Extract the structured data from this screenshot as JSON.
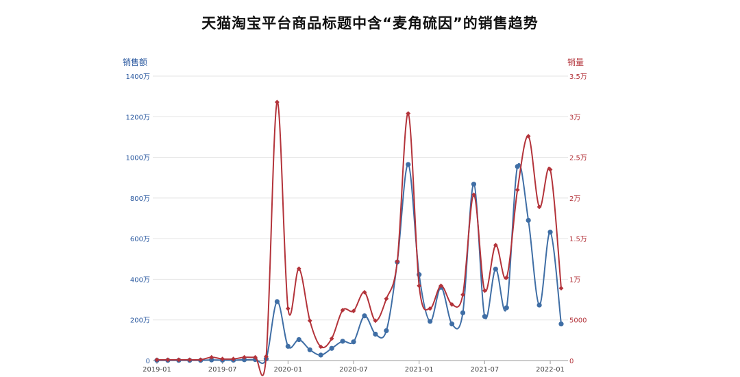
{
  "chart_data": {
    "type": "line",
    "title": "天猫淘宝平台商品标题中含“麦角硫因”的销售趋势",
    "x": [
      "2019-01",
      "2019-02",
      "2019-03",
      "2019-04",
      "2019-05",
      "2019-06",
      "2019-07",
      "2019-08",
      "2019-09",
      "2019-10",
      "2019-11",
      "2019-12",
      "2020-01",
      "2020-02",
      "2020-03",
      "2020-04",
      "2020-05",
      "2020-06",
      "2020-07",
      "2020-08",
      "2020-09",
      "2020-10",
      "2020-11",
      "2020-12",
      "2021-01",
      "2021-02",
      "2021-03",
      "2021-04",
      "2021-05",
      "2021-06",
      "2021-07",
      "2021-08",
      "2021-09",
      "2021-10",
      "2021-11",
      "2021-12",
      "2022-01",
      "2022-02"
    ],
    "x_tick_labels": [
      "2019-01",
      "2019-07",
      "2020-01",
      "2020-07",
      "2021-01",
      "2021-07",
      "2022-01"
    ],
    "y_left": {
      "label": "销售额",
      "range": [
        0,
        14000000
      ],
      "tick_labels": [
        "0",
        "200万",
        "400万",
        "600万",
        "800万",
        "1000万",
        "1200万",
        "1400万"
      ],
      "color": "#2c5aa0"
    },
    "y_right": {
      "label": "销量",
      "range": [
        0,
        35000
      ],
      "tick_labels": [
        "0",
        "5000",
        "1万",
        "1.5万",
        "2万",
        "2.5万",
        "3万",
        "3.5万"
      ],
      "color": "#b3333a"
    },
    "series": [
      {
        "axis": "left",
        "color": "#3f6ea5",
        "marker": "circle",
        "values": [
          10000,
          10000,
          10000,
          10000,
          10000,
          30000,
          20000,
          20000,
          40000,
          50000,
          80000,
          2900000,
          700000,
          1030000,
          530000,
          270000,
          600000,
          950000,
          920000,
          2200000,
          1300000,
          1470000,
          4850000,
          9650000,
          4230000,
          1930000,
          3600000,
          1800000,
          2350000,
          8680000,
          2170000,
          4500000,
          2600000,
          9550000,
          6900000,
          2730000,
          6320000,
          1800000
        ]
      },
      {
        "axis": "right",
        "color": "#b3333a",
        "marker": "diamond",
        "values": [
          100,
          100,
          100,
          100,
          100,
          400,
          200,
          200,
          400,
          400,
          500,
          31800,
          6400,
          11300,
          4900,
          1700,
          2700,
          6200,
          6100,
          8400,
          4900,
          7600,
          12200,
          30400,
          9200,
          6400,
          9200,
          6900,
          8100,
          20400,
          8600,
          14200,
          10200,
          21000,
          27600,
          18900,
          23500,
          8900
        ]
      }
    ],
    "grid": true
  }
}
